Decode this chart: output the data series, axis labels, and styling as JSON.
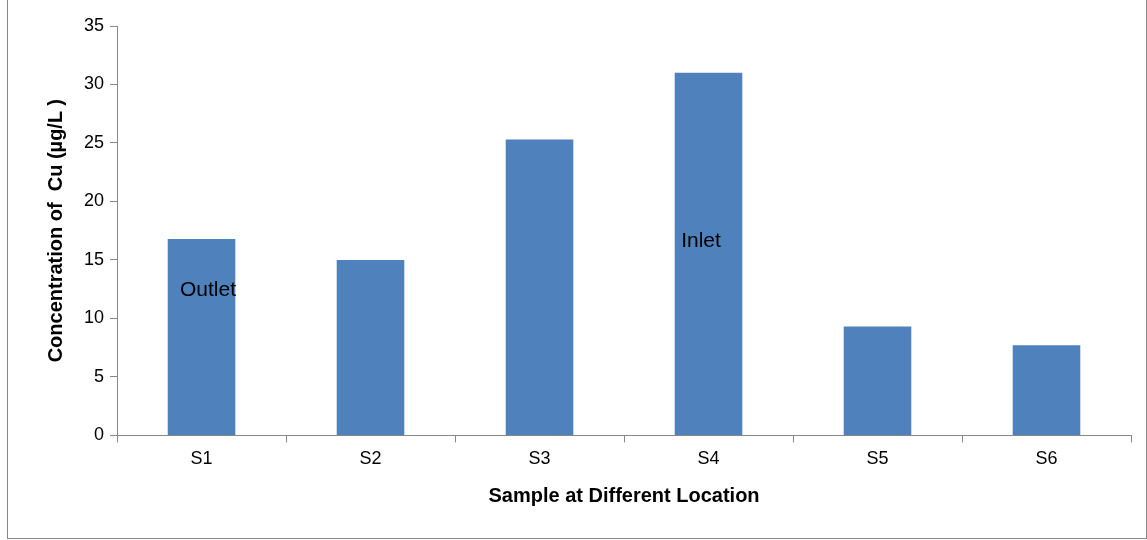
{
  "chart_data": {
    "type": "bar",
    "xlabel": "Sample at Different Location",
    "ylabel": "Concentration of  Cu (µg/L )",
    "categories": [
      "S1",
      "S2",
      "S3",
      "S4",
      "S5",
      "S6"
    ],
    "values": [
      16.8,
      15.0,
      25.3,
      31.0,
      9.3,
      7.7
    ],
    "color": "#4f81bd",
    "ylim": [
      0,
      35
    ],
    "yticks": [
      0,
      5,
      10,
      15,
      20,
      25,
      30,
      35
    ],
    "grid": false,
    "legend": false,
    "annotations": [
      "Outlet",
      "Inlet"
    ]
  }
}
